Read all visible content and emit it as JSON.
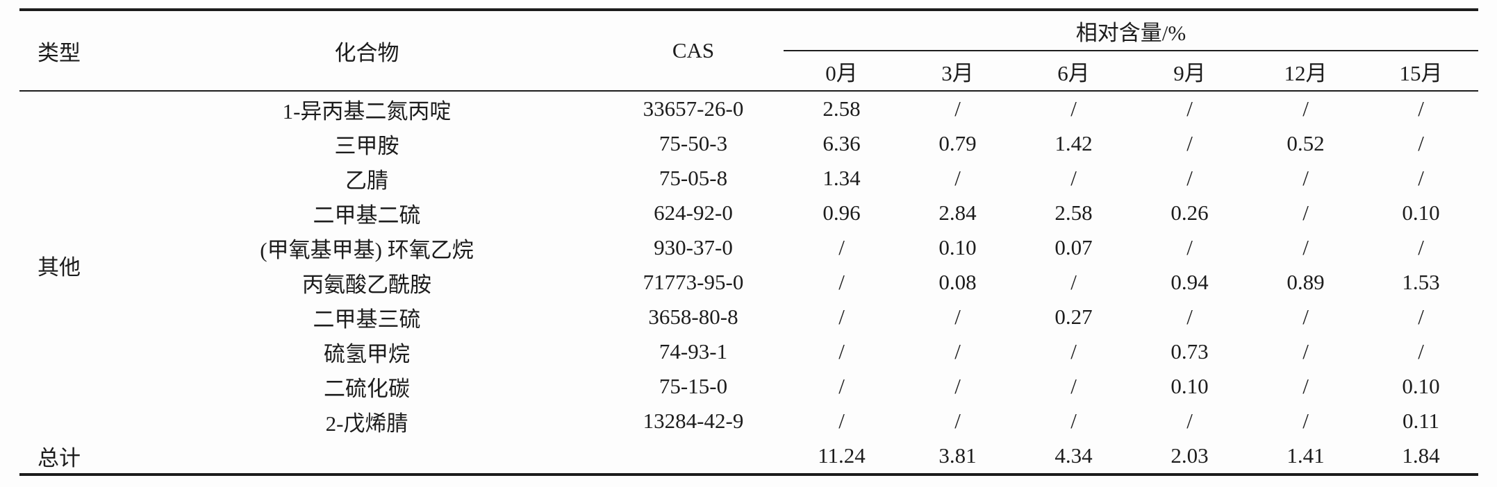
{
  "table": {
    "headers": {
      "type": "类型",
      "compound": "化合物",
      "cas": "CAS",
      "relative_content": "相对含量/%",
      "months": [
        "0月",
        "3月",
        "6月",
        "9月",
        "12月",
        "15月"
      ]
    },
    "category_label": "其他",
    "rows": [
      {
        "compound": "1-异丙基二氮丙啶",
        "cas": "33657-26-0",
        "values": [
          "2.58",
          "/",
          "/",
          "/",
          "/",
          "/"
        ]
      },
      {
        "compound": "三甲胺",
        "cas": "75-50-3",
        "values": [
          "6.36",
          "0.79",
          "1.42",
          "/",
          "0.52",
          "/"
        ]
      },
      {
        "compound": "乙腈",
        "cas": "75-05-8",
        "values": [
          "1.34",
          "/",
          "/",
          "/",
          "/",
          "/"
        ]
      },
      {
        "compound": "二甲基二硫",
        "cas": "624-92-0",
        "values": [
          "0.96",
          "2.84",
          "2.58",
          "0.26",
          "/",
          "0.10"
        ]
      },
      {
        "compound": "(甲氧基甲基) 环氧乙烷",
        "cas": "930-37-0",
        "values": [
          "/",
          "0.10",
          "0.07",
          "/",
          "/",
          "/"
        ]
      },
      {
        "compound": "丙氨酸乙酰胺",
        "cas": "71773-95-0",
        "values": [
          "/",
          "0.08",
          "/",
          "0.94",
          "0.89",
          "1.53"
        ]
      },
      {
        "compound": "二甲基三硫",
        "cas": "3658-80-8",
        "values": [
          "/",
          "/",
          "0.27",
          "/",
          "/",
          "/"
        ]
      },
      {
        "compound": "硫氢甲烷",
        "cas": "74-93-1",
        "values": [
          "/",
          "/",
          "/",
          "0.73",
          "/",
          "/"
        ]
      },
      {
        "compound": "二硫化碳",
        "cas": "75-15-0",
        "values": [
          "/",
          "/",
          "/",
          "0.10",
          "/",
          "0.10"
        ]
      },
      {
        "compound": "2-戊烯腈",
        "cas": "13284-42-9",
        "values": [
          "/",
          "/",
          "/",
          "/",
          "/",
          "0.11"
        ]
      }
    ],
    "total": {
      "label": "总计",
      "values": [
        "11.24",
        "3.81",
        "4.34",
        "2.03",
        "1.41",
        "1.84"
      ]
    }
  },
  "chart_data": {
    "type": "table",
    "title": "相对含量/%",
    "categories": [
      "0月",
      "3月",
      "6月",
      "9月",
      "12月",
      "15月"
    ],
    "series": [
      {
        "name": "1-异丙基二氮丙啶 (33657-26-0)",
        "values": [
          2.58,
          null,
          null,
          null,
          null,
          null
        ]
      },
      {
        "name": "三甲胺 (75-50-3)",
        "values": [
          6.36,
          0.79,
          1.42,
          null,
          0.52,
          null
        ]
      },
      {
        "name": "乙腈 (75-05-8)",
        "values": [
          1.34,
          null,
          null,
          null,
          null,
          null
        ]
      },
      {
        "name": "二甲基二硫 (624-92-0)",
        "values": [
          0.96,
          2.84,
          2.58,
          0.26,
          null,
          0.1
        ]
      },
      {
        "name": "(甲氧基甲基) 环氧乙烷 (930-37-0)",
        "values": [
          null,
          0.1,
          0.07,
          null,
          null,
          null
        ]
      },
      {
        "name": "丙氨酸乙酰胺 (71773-95-0)",
        "values": [
          null,
          0.08,
          null,
          0.94,
          0.89,
          1.53
        ]
      },
      {
        "name": "二甲基三硫 (3658-80-8)",
        "values": [
          null,
          null,
          0.27,
          null,
          null,
          null
        ]
      },
      {
        "name": "硫氢甲烷 (74-93-1)",
        "values": [
          null,
          null,
          null,
          0.73,
          null,
          null
        ]
      },
      {
        "name": "二硫化碳 (75-15-0)",
        "values": [
          null,
          null,
          null,
          0.1,
          null,
          0.1
        ]
      },
      {
        "name": "2-戊烯腈 (13284-42-9)",
        "values": [
          null,
          null,
          null,
          null,
          null,
          0.11
        ]
      },
      {
        "name": "总计",
        "values": [
          11.24,
          3.81,
          4.34,
          2.03,
          1.41,
          1.84
        ]
      }
    ]
  }
}
